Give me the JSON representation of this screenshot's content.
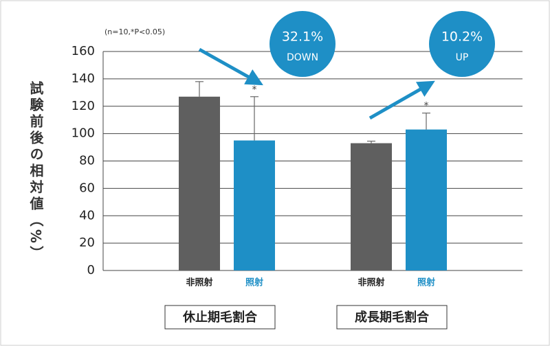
{
  "chart_data": {
    "type": "bar",
    "y_label": "試験前後の相対値（%）",
    "note": "(n=10,*P<0.05)",
    "categories": [
      "休止期毛割合",
      "成長期毛割合"
    ],
    "series": [
      {
        "name": "非照射",
        "color": "#5f5f5f",
        "values": [
          127,
          93
        ],
        "errors": [
          11,
          1.5
        ],
        "markers": [
          null,
          null
        ]
      },
      {
        "name": "照射",
        "color": "#1e8fc6",
        "values": [
          95,
          103
        ],
        "errors": [
          32,
          12
        ],
        "markers": [
          "*",
          "*"
        ]
      }
    ],
    "annotations": [
      {
        "value": "32.1%",
        "label": "DOWN"
      },
      {
        "value": "10.2%",
        "label": "UP"
      }
    ],
    "ylim": [
      0,
      160
    ],
    "yticks": [
      0,
      20,
      40,
      60,
      80,
      100,
      120,
      140,
      160
    ],
    "grid": true
  }
}
